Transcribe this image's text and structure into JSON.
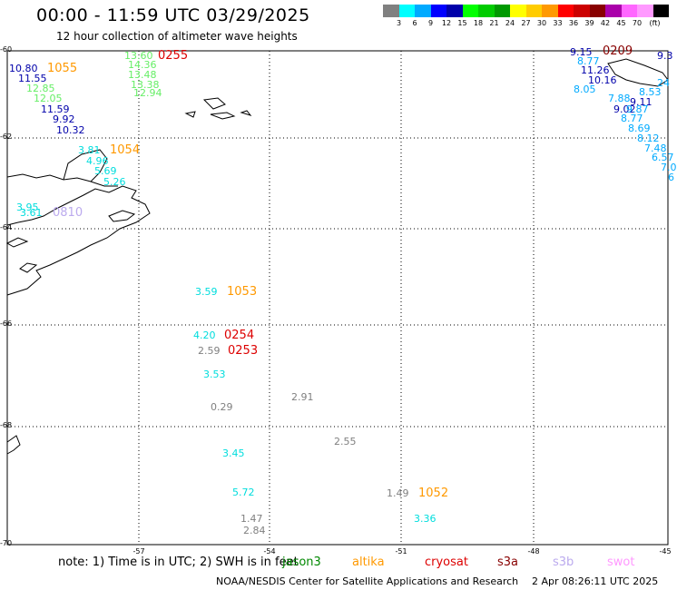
{
  "title": "00:00 - 11:59 UTC 03/29/2025",
  "subtitle": "12 hour collection of altimeter wave heights",
  "colorbar": {
    "colors": [
      "#808080",
      "#00ffff",
      "#00aaff",
      "#0000ff",
      "#0000aa",
      "#00ff00",
      "#00cc00",
      "#009900",
      "#ffff00",
      "#ffcc00",
      "#ff9900",
      "#ff0000",
      "#cc0000",
      "#880000",
      "#aa00aa",
      "#ff66ff",
      "#ff99ff",
      "#000000"
    ],
    "ticks": [
      "3",
      "6",
      "9",
      "12",
      "15",
      "18",
      "21",
      "24",
      "27",
      "30",
      "33",
      "36",
      "39",
      "42",
      "45",
      "70",
      "(ft)"
    ]
  },
  "axes": {
    "lat_labels": [
      "-60",
      "-62",
      "-64",
      "-66",
      "-68",
      "-70"
    ],
    "lon_labels": [
      "-57",
      "-54",
      "-51",
      "-48",
      "-45"
    ]
  },
  "wave_heights": [
    {
      "text": "10.80",
      "color": "#0000aa"
    },
    {
      "text": "11.55",
      "color": "#0000aa"
    },
    {
      "text": "12.85",
      "color": "#66ee66"
    },
    {
      "text": "12.05",
      "color": "#66ee66"
    },
    {
      "text": "11.59",
      "color": "#0000aa"
    },
    {
      "text": "9.92",
      "color": "#0000aa"
    },
    {
      "text": "10.32",
      "color": "#0000aa"
    },
    {
      "text": "3.81",
      "color": "#00dddd"
    },
    {
      "text": "4.96",
      "color": "#00dddd"
    },
    {
      "text": "5.69",
      "color": "#00dddd"
    },
    {
      "text": "5.26",
      "color": "#00dddd"
    },
    {
      "text": "13.60",
      "color": "#66ee66"
    },
    {
      "text": "14.36",
      "color": "#66ee66"
    },
    {
      "text": "13.48",
      "color": "#66ee66"
    },
    {
      "text": "13.38",
      "color": "#66ee66"
    },
    {
      "text": "12.94",
      "color": "#66ee66"
    },
    {
      "text": "3.95",
      "color": "#00dddd"
    },
    {
      "text": "3.61",
      "color": "#00dddd"
    },
    {
      "text": "3.59",
      "color": "#00dddd"
    },
    {
      "text": "4.20",
      "color": "#00dddd"
    },
    {
      "text": "2.59",
      "color": "#808080"
    },
    {
      "text": "3.53",
      "color": "#00dddd"
    },
    {
      "text": "0.29",
      "color": "#808080"
    },
    {
      "text": "2.91",
      "color": "#808080"
    },
    {
      "text": "2.55",
      "color": "#808080"
    },
    {
      "text": "3.45",
      "color": "#00dddd"
    },
    {
      "text": "5.72",
      "color": "#00dddd"
    },
    {
      "text": "1.47",
      "color": "#808080"
    },
    {
      "text": "2.84",
      "color": "#808080"
    },
    {
      "text": "1.49",
      "color": "#808080"
    },
    {
      "text": "3.36",
      "color": "#00dddd"
    },
    {
      "text": "9.15",
      "color": "#0000aa"
    },
    {
      "text": "9.3",
      "color": "#0000aa"
    },
    {
      "text": "8.77",
      "color": "#00aaff"
    },
    {
      "text": "11.26",
      "color": "#0000aa"
    },
    {
      "text": "10.16",
      "color": "#0000aa"
    },
    {
      "text": "8.05",
      "color": "#00aaff"
    },
    {
      "text": "8.53",
      "color": "#00aaff"
    },
    {
      "text": "7.88",
      "color": "#00aaff"
    },
    {
      "text": "9.11",
      "color": "#0000aa"
    },
    {
      "text": "9.02",
      "color": "#0000aa"
    },
    {
      "text": "8.77",
      "color": "#00aaff"
    },
    {
      "text": "8.69",
      "color": "#00aaff"
    },
    {
      "text": "8.12",
      "color": "#00aaff"
    },
    {
      "text": "7.48",
      "color": "#00aaff"
    },
    {
      "text": "6.57",
      "color": "#00aaff"
    },
    {
      "text": "7.0",
      "color": "#00aaff"
    },
    {
      "text": "6",
      "color": "#00aaff"
    },
    {
      "text": "9.87",
      "color": "#00aaff"
    },
    {
      "text": "24",
      "color": "#00aaff"
    }
  ],
  "pass_ids": [
    {
      "text": "1055",
      "color": "#ff9900"
    },
    {
      "text": "0255",
      "color": "#dd0000"
    },
    {
      "text": "1054",
      "color": "#ff9900"
    },
    {
      "text": "0810",
      "color": "#bbaaee"
    },
    {
      "text": "1053",
      "color": "#ff9900"
    },
    {
      "text": "0254",
      "color": "#dd0000"
    },
    {
      "text": "0253",
      "color": "#dd0000"
    },
    {
      "text": "1052",
      "color": "#ff9900"
    },
    {
      "text": "0209",
      "color": "#880000"
    }
  ],
  "note": "note: 1) Time is in UTC; 2) SWH is in feet",
  "legend": [
    {
      "text": "jason3",
      "color": "#008800"
    },
    {
      "text": "altika",
      "color": "#ff9900"
    },
    {
      "text": "cryosat",
      "color": "#dd0000"
    },
    {
      "text": "s3a",
      "color": "#880000"
    },
    {
      "text": "s3b",
      "color": "#bbaaee"
    },
    {
      "text": "swot",
      "color": "#ff99ff"
    }
  ],
  "footer": "NOAA/NESDIS Center for Satellite Applications and Research",
  "timestamp": "2 Apr 08:26:11 UTC 2025"
}
